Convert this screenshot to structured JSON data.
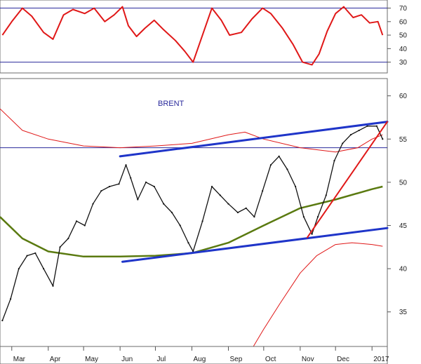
{
  "chart_data": [
    {
      "panel": "oscillator",
      "type": "line",
      "y_ticks": [
        "70",
        "60",
        "50",
        "40",
        "30"
      ],
      "y_tick_values": [
        70,
        60,
        50,
        40,
        30
      ],
      "ylim": [
        22,
        76
      ],
      "reference_lines": [
        70,
        30
      ],
      "series": [
        {
          "color": "#e01818",
          "x": [
            "2016-02-22",
            "2016-03-01",
            "2016-03-10",
            "2016-03-18",
            "2016-03-28",
            "2016-04-05",
            "2016-04-14",
            "2016-04-22",
            "2016-05-02",
            "2016-05-10",
            "2016-05-19",
            "2016-05-27",
            "2016-06-03",
            "2016-06-08",
            "2016-06-15",
            "2016-06-22",
            "2016-06-30",
            "2016-07-08",
            "2016-07-18",
            "2016-07-26",
            "2016-08-02",
            "2016-08-10",
            "2016-08-18",
            "2016-08-26",
            "2016-09-02",
            "2016-09-12",
            "2016-09-21",
            "2016-09-30",
            "2016-10-07",
            "2016-10-17",
            "2016-10-26",
            "2016-11-03",
            "2016-11-11",
            "2016-11-17",
            "2016-11-24",
            "2016-12-01",
            "2016-12-08",
            "2016-12-16",
            "2016-12-23",
            "2016-12-30",
            "2017-01-06",
            "2017-01-10"
          ],
          "values": [
            50,
            60,
            70,
            64,
            52,
            47,
            65,
            69,
            66,
            70,
            60,
            65,
            71,
            57,
            49,
            55,
            61,
            54,
            46,
            38,
            30,
            50,
            70,
            61,
            50,
            52,
            62,
            70,
            66,
            55,
            43,
            30,
            28,
            36,
            53,
            66,
            71,
            63,
            65,
            59,
            60,
            50
          ]
        }
      ]
    },
    {
      "panel": "price",
      "type": "line",
      "title": "BRENT",
      "y_ticks": [
        "60",
        "55",
        "50",
        "45",
        "40",
        "35"
      ],
      "y_tick_values": [
        60,
        55,
        50,
        45,
        40,
        35
      ],
      "ylim": [
        31,
        62
      ],
      "x_ticks": [
        "Mar",
        "Apr",
        "May",
        "Jun",
        "Jul",
        "Aug",
        "Sep",
        "Oct",
        "Nov",
        "Dec",
        "2017"
      ],
      "x_tick_dates": [
        "2016-03-01",
        "2016-04-01",
        "2016-05-01",
        "2016-06-01",
        "2016-07-01",
        "2016-08-01",
        "2016-09-01",
        "2016-10-01",
        "2016-11-01",
        "2016-12-01",
        "2017-01-01"
      ],
      "xlim": [
        "2016-02-20",
        "2017-01-14"
      ],
      "price_color": "#111111",
      "price": {
        "x": [
          "2016-02-22",
          "2016-02-29",
          "2016-03-07",
          "2016-03-14",
          "2016-03-21",
          "2016-03-28",
          "2016-04-05",
          "2016-04-11",
          "2016-04-18",
          "2016-04-25",
          "2016-05-02",
          "2016-05-09",
          "2016-05-16",
          "2016-05-23",
          "2016-05-31",
          "2016-06-06",
          "2016-06-10",
          "2016-06-16",
          "2016-06-23",
          "2016-06-30",
          "2016-07-08",
          "2016-07-15",
          "2016-07-22",
          "2016-07-29",
          "2016-08-02",
          "2016-08-10",
          "2016-08-18",
          "2016-08-25",
          "2016-09-01",
          "2016-09-09",
          "2016-09-16",
          "2016-09-23",
          "2016-09-30",
          "2016-10-07",
          "2016-10-14",
          "2016-10-21",
          "2016-10-28",
          "2016-11-04",
          "2016-11-11",
          "2016-11-16",
          "2016-11-23",
          "2016-11-30",
          "2016-12-07",
          "2016-12-14",
          "2016-12-21",
          "2016-12-28",
          "2017-01-05",
          "2017-01-10"
        ],
        "values": [
          34.0,
          36.5,
          40.0,
          41.5,
          41.8,
          40.0,
          38.0,
          42.5,
          43.5,
          45.5,
          45.0,
          47.5,
          49.0,
          49.5,
          49.8,
          52.0,
          50.5,
          48.0,
          50.0,
          49.5,
          47.5,
          46.5,
          45.0,
          43.0,
          42.0,
          45.5,
          49.5,
          48.5,
          47.5,
          46.5,
          47.0,
          46.0,
          49.0,
          52.0,
          53.0,
          51.5,
          49.5,
          46.0,
          44.0,
          46.0,
          48.5,
          52.5,
          54.5,
          55.5,
          56.0,
          56.5,
          56.5,
          55.0
        ]
      },
      "moving_averages": [
        {
          "color": "#e01818",
          "x": [
            "2016-02-20",
            "2016-03-10",
            "2016-04-01",
            "2016-05-01",
            "2016-06-01",
            "2016-07-01",
            "2016-08-01",
            "2016-09-01",
            "2016-09-15",
            "2016-10-01",
            "2016-11-01",
            "2016-12-01",
            "2016-12-20",
            "2017-01-01",
            "2017-01-10"
          ],
          "values": [
            58.5,
            56.0,
            55.0,
            54.2,
            54.0,
            54.2,
            54.5,
            55.5,
            55.8,
            55.0,
            54.0,
            53.5,
            54.0,
            55.0,
            55.5
          ]
        },
        {
          "color": "#5a7a10",
          "x": [
            "2016-02-20",
            "2016-03-10",
            "2016-04-01",
            "2016-05-01",
            "2016-06-01",
            "2016-07-01",
            "2016-08-01",
            "2016-09-01",
            "2016-10-01",
            "2016-11-01",
            "2016-12-01",
            "2017-01-01",
            "2017-01-10"
          ],
          "values": [
            46.0,
            43.5,
            42.0,
            41.4,
            41.4,
            41.5,
            41.8,
            43.0,
            45.0,
            47.0,
            48.0,
            49.2,
            49.5
          ]
        },
        {
          "color": "#e01818",
          "x": [
            "2016-09-20",
            "2016-10-01",
            "2016-10-15",
            "2016-11-01",
            "2016-11-15",
            "2016-12-01",
            "2016-12-15",
            "2017-01-01",
            "2017-01-10"
          ],
          "values": [
            30.5,
            33.0,
            36.0,
            39.5,
            41.5,
            42.8,
            43.0,
            42.8,
            42.6
          ]
        }
      ],
      "trendlines": [
        {
          "color": "#1f35c9",
          "x": [
            "2016-06-01",
            "2017-01-14"
          ],
          "values": [
            53.0,
            57.0
          ]
        },
        {
          "color": "#1f35c9",
          "x": [
            "2016-06-03",
            "2017-01-14"
          ],
          "values": [
            40.8,
            44.7
          ]
        },
        {
          "color": "#e01818",
          "x": [
            "2016-11-07",
            "2017-01-14"
          ],
          "values": [
            43.6,
            57.0
          ]
        }
      ],
      "reference_lines": [
        54
      ]
    }
  ]
}
